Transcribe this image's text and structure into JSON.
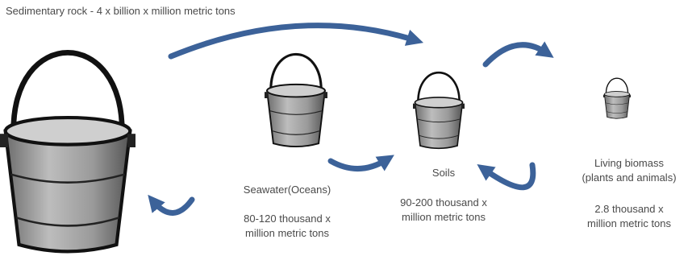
{
  "title": "Sedimentary rock - 4 x billion x million metric tons",
  "nodes": [
    {
      "label": [
        "Seawater(Oceans)"
      ],
      "amount": [
        "80-120 thousand x",
        "million metric tons"
      ]
    },
    {
      "label": [
        "Soils"
      ],
      "amount": [
        "90-200 thousand x",
        "million metric tons"
      ]
    },
    {
      "label": [
        "Living biomass",
        "(plants and animals)"
      ],
      "amount": [
        "2.8 thousand x",
        "million metric tons"
      ]
    }
  ]
}
